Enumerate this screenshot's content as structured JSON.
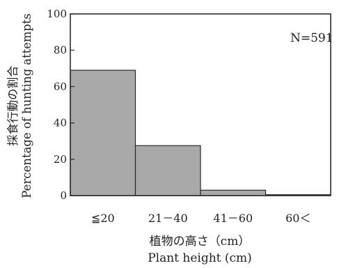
{
  "chart_data": {
    "type": "bar",
    "categories": [
      "≦20",
      "21－40",
      "41－60",
      "60＜"
    ],
    "values": [
      69,
      27.5,
      3,
      0.5
    ],
    "yticks": [
      0,
      20,
      40,
      60,
      80,
      100
    ],
    "ylim": [
      0,
      100
    ],
    "ylabel_jp": "採食行動の割合",
    "ylabel_en": "Percentage of hunting attempts",
    "xlabel_jp": "植物の高さ（cm）",
    "xlabel_en": "Plant height (cm)",
    "annotation": "N=591",
    "grid": false,
    "legend": "none",
    "bar_color": "#a9a9a9",
    "edge_color": "#2a2a2a"
  }
}
